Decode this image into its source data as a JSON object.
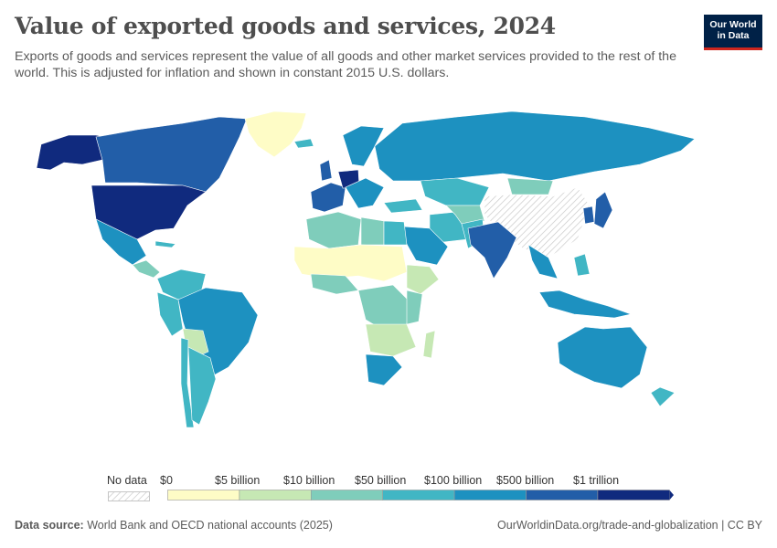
{
  "header": {
    "title": "Value of exported goods and services, 2024",
    "subtitle": "Exports of goods and services represent the value of all goods and other market services provided to the rest of the world. This is adjusted for inflation and shown in constant 2015 U.S. dollars."
  },
  "logo": {
    "line1": "Our World",
    "line2": "in Data"
  },
  "legend": {
    "no_data_label": "No data",
    "bins": [
      {
        "label": "$0",
        "color": "#fefcc6"
      },
      {
        "label": "$5 billion",
        "color": "#c6e8b4"
      },
      {
        "label": "$10 billion",
        "color": "#7fcdbb"
      },
      {
        "label": "$50 billion",
        "color": "#41b6c4"
      },
      {
        "label": "$100 billion",
        "color": "#1d91c0"
      },
      {
        "label": "$500 billion",
        "color": "#225ea8"
      },
      {
        "label": "$1 trillion",
        "color": "#102a7e"
      }
    ]
  },
  "footer": {
    "source_label": "Data source:",
    "source_text": "World Bank and OECD national accounts (2025)",
    "url": "OurWorldinData.org/trade-and-globalization | CC BY"
  }
}
